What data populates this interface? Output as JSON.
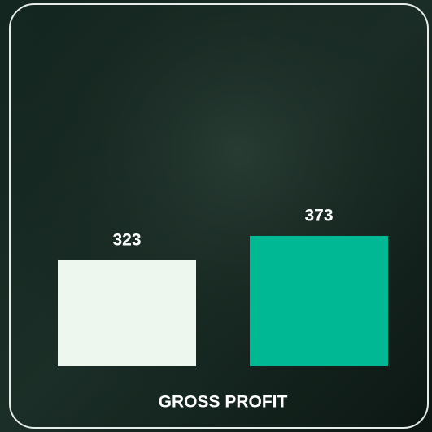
{
  "chart_data": {
    "type": "bar",
    "title": "GROSS PROFIT",
    "categories": [
      null,
      null
    ],
    "values": [
      323,
      373
    ],
    "colors": [
      "#eef7ee",
      "#00b894"
    ],
    "ylim": [
      106,
      790
    ]
  }
}
